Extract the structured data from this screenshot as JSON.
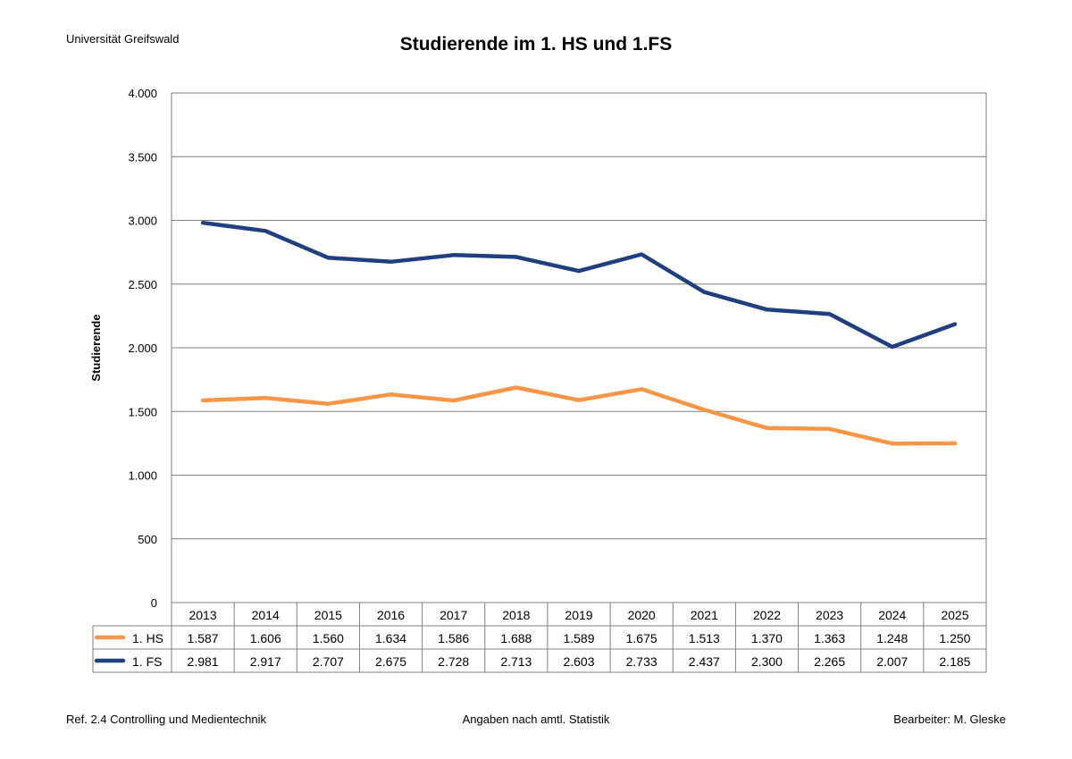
{
  "header": {
    "institution": "Universität Greifswald"
  },
  "footer": {
    "left": "Ref. 2.4 Controlling und Medientechnik",
    "center": "Angaben nach amtl. Statistik",
    "right": "Bearbeiter: M. Gleske"
  },
  "chart_data": {
    "type": "line",
    "title": "Studierende im 1. HS und 1.FS",
    "xlabel": "",
    "ylabel": "Studierende",
    "ylim": [
      0,
      4000
    ],
    "yticks": [
      0,
      500,
      1000,
      1500,
      2000,
      2500,
      3000,
      3500,
      4000
    ],
    "ytick_labels": [
      "0",
      "500",
      "1.000",
      "1.500",
      "2.000",
      "2.500",
      "3.000",
      "3.500",
      "4.000"
    ],
    "categories": [
      "2013",
      "2014",
      "2015",
      "2016",
      "2017",
      "2018",
      "2019",
      "2020",
      "2021",
      "2022",
      "2023",
      "2024",
      "2025"
    ],
    "grid": true,
    "legend": "data-table-below",
    "series": [
      {
        "name": "1. HS",
        "color": "#f79646",
        "values": [
          1587,
          1606,
          1560,
          1634,
          1586,
          1688,
          1589,
          1675,
          1513,
          1370,
          1363,
          1248,
          1250
        ],
        "labels": [
          "1.587",
          "1.606",
          "1.560",
          "1.634",
          "1.586",
          "1.688",
          "1.589",
          "1.675",
          "1.513",
          "1.370",
          "1.363",
          "1.248",
          "1.250"
        ]
      },
      {
        "name": "1. FS",
        "color": "#1f3f7f",
        "values": [
          2981,
          2917,
          2707,
          2675,
          2728,
          2713,
          2603,
          2733,
          2437,
          2300,
          2265,
          2007,
          2185
        ],
        "labels": [
          "2.981",
          "2.917",
          "2.707",
          "2.675",
          "2.728",
          "2.713",
          "2.603",
          "2.733",
          "2.437",
          "2.300",
          "2.265",
          "2.007",
          "2.185"
        ]
      }
    ]
  }
}
